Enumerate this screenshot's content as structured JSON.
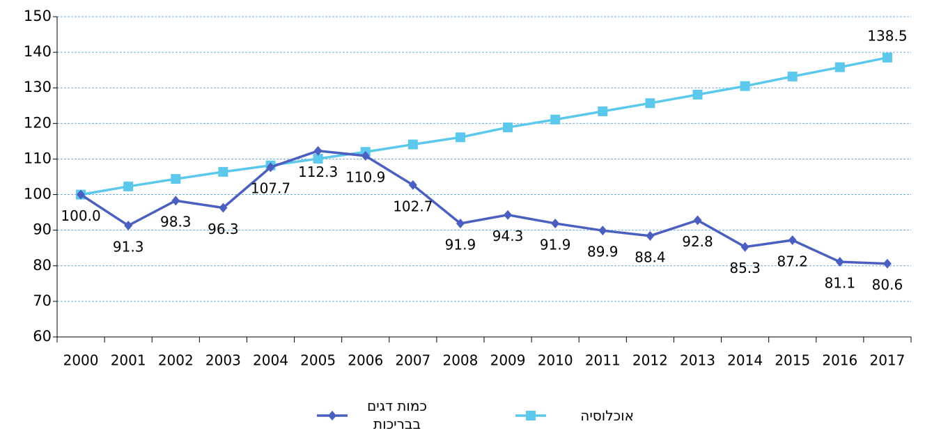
{
  "chart_data": {
    "type": "line",
    "categories": [
      "2000",
      "2001",
      "2002",
      "2003",
      "2004",
      "2005",
      "2006",
      "2007",
      "2008",
      "2009",
      "2010",
      "2011",
      "2012",
      "2013",
      "2014",
      "2015",
      "2016",
      "2017"
    ],
    "series": [
      {
        "name": "כמות דגים בבריכות",
        "color": "#4a5fbf",
        "marker": "diamond",
        "values": [
          100.0,
          91.3,
          98.3,
          96.3,
          107.7,
          112.3,
          110.9,
          102.7,
          91.9,
          94.3,
          91.9,
          89.9,
          88.4,
          92.8,
          85.3,
          87.2,
          81.1,
          80.6
        ],
        "value_labels": [
          "100.0",
          "91.3",
          "98.3",
          "96.3",
          "107.7",
          "112.3",
          "110.9",
          "102.7",
          "91.9",
          "94.3",
          "91.9",
          "89.9",
          "88.4",
          "92.8",
          "85.3",
          "87.2",
          "81.1",
          "80.6"
        ]
      },
      {
        "name": "אוכלוסיה",
        "color": "#5bc8ec",
        "marker": "square",
        "values": [
          100,
          102.3,
          104.4,
          106.4,
          108.2,
          110.1,
          112.0,
          114.1,
          116.1,
          118.9,
          121.1,
          123.4,
          125.7,
          128.1,
          130.5,
          133.2,
          135.8,
          138.5
        ],
        "value_labels": [
          null,
          null,
          null,
          null,
          null,
          null,
          null,
          null,
          null,
          null,
          null,
          null,
          null,
          null,
          null,
          null,
          null,
          "138.5"
        ]
      }
    ],
    "ylim": [
      60,
      150
    ],
    "yticks": [
      60,
      70,
      80,
      90,
      100,
      110,
      120,
      130,
      140,
      150
    ],
    "grid": true
  }
}
